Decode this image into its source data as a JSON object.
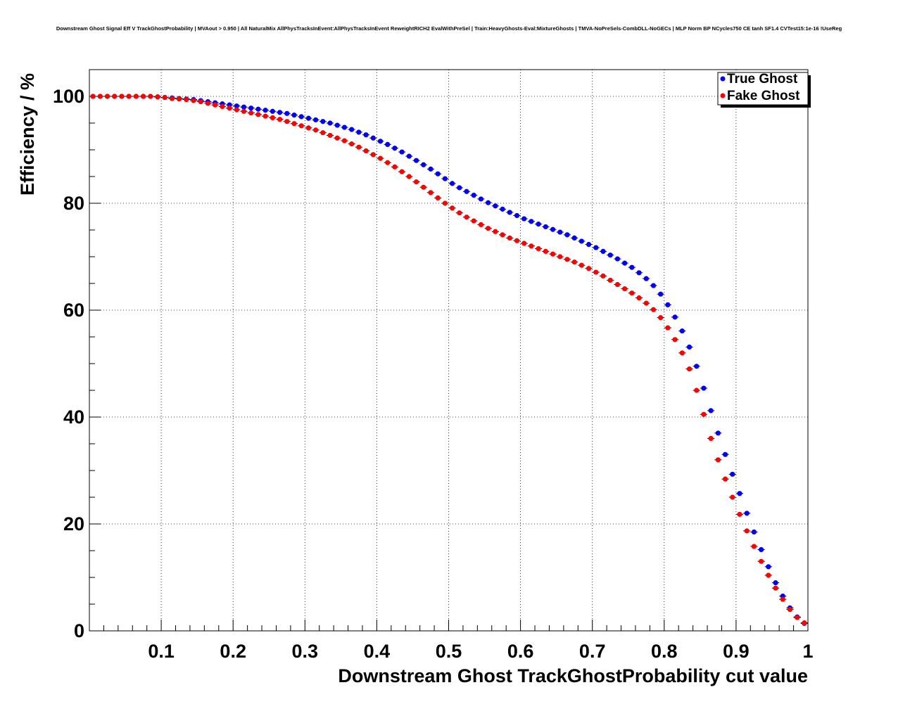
{
  "chart_data": {
    "type": "scatter",
    "title": "Downstream Ghost Signal Eff V TrackGhostProbability | MVAout > 0.950 | All NaturalMix AllPhysTracksInEvent:AllPhysTracksInEvent ReweightRICH2 EvalWithPreSel | Train:HeavyGhosts-Eval:MixtureGhosts | TMVA-NoPreSels-CombDLL-NoGECs | MLP Norm BP NCycles750 CE tanh SF1.4 CVTest15:1e-16 !UseReg",
    "xlabel": "Downstream Ghost TrackGhostProbability cut value",
    "ylabel": "Efficiency / %",
    "xlim": [
      0,
      1
    ],
    "ylim": [
      0,
      105
    ],
    "x_ticks": [
      0.1,
      0.2,
      0.3,
      0.4,
      0.5,
      0.6,
      0.7,
      0.8,
      0.9,
      1
    ],
    "x_tick_labels": [
      "0.1",
      "0.2",
      "0.3",
      "0.4",
      "0.5",
      "0.6",
      "0.7",
      "0.8",
      "0.9",
      "1"
    ],
    "y_ticks": [
      0,
      20,
      40,
      60,
      80,
      100
    ],
    "y_tick_labels": [
      "0",
      "20",
      "40",
      "60",
      "80",
      "100"
    ],
    "grid": true,
    "legend_position": "top-right",
    "x": [
      0.005,
      0.015,
      0.025,
      0.035,
      0.045,
      0.055,
      0.065,
      0.075,
      0.085,
      0.095,
      0.105,
      0.115,
      0.125,
      0.135,
      0.145,
      0.155,
      0.165,
      0.175,
      0.185,
      0.195,
      0.205,
      0.215,
      0.225,
      0.235,
      0.245,
      0.255,
      0.265,
      0.275,
      0.285,
      0.295,
      0.305,
      0.315,
      0.325,
      0.335,
      0.345,
      0.355,
      0.365,
      0.375,
      0.385,
      0.395,
      0.405,
      0.415,
      0.425,
      0.435,
      0.445,
      0.455,
      0.465,
      0.475,
      0.485,
      0.495,
      0.505,
      0.515,
      0.525,
      0.535,
      0.545,
      0.555,
      0.565,
      0.575,
      0.585,
      0.595,
      0.605,
      0.615,
      0.625,
      0.635,
      0.645,
      0.655,
      0.665,
      0.675,
      0.685,
      0.695,
      0.705,
      0.715,
      0.725,
      0.735,
      0.745,
      0.755,
      0.765,
      0.775,
      0.785,
      0.795,
      0.805,
      0.815,
      0.825,
      0.835,
      0.845,
      0.855,
      0.865,
      0.875,
      0.885,
      0.895,
      0.905,
      0.915,
      0.925,
      0.935,
      0.945,
      0.955,
      0.965,
      0.975,
      0.985,
      0.995
    ],
    "series": [
      {
        "name": "True Ghost",
        "color": "#0000ff",
        "values": [
          100.0,
          100.0,
          100.0,
          100.0,
          100.0,
          100.0,
          100.0,
          100.0,
          100.0,
          99.9,
          99.8,
          99.7,
          99.6,
          99.5,
          99.4,
          99.2,
          99.0,
          98.8,
          98.6,
          98.4,
          98.2,
          98.0,
          97.8,
          97.6,
          97.4,
          97.2,
          97.0,
          96.8,
          96.5,
          96.2,
          95.9,
          95.6,
          95.3,
          95.0,
          94.6,
          94.2,
          93.8,
          93.3,
          92.8,
          92.2,
          91.6,
          91.0,
          90.3,
          89.6,
          88.8,
          88.0,
          87.2,
          86.4,
          85.5,
          84.6,
          83.7,
          82.9,
          82.2,
          81.5,
          80.8,
          80.1,
          79.5,
          78.9,
          78.3,
          77.7,
          77.1,
          76.6,
          76.1,
          75.6,
          75.1,
          74.6,
          74.1,
          73.5,
          72.9,
          72.3,
          71.7,
          71.0,
          70.3,
          69.6,
          68.8,
          68.0,
          67.0,
          65.9,
          64.6,
          63.0,
          61.0,
          58.7,
          56.1,
          53.1,
          49.5,
          45.4,
          41.2,
          37.0,
          33.0,
          29.3,
          25.7,
          22.0,
          18.5,
          15.2,
          12.0,
          9.0,
          6.5,
          4.3,
          2.6,
          1.4
        ]
      },
      {
        "name": "Fake Ghost",
        "color": "#ff0000",
        "values": [
          100.0,
          100.0,
          100.0,
          100.0,
          100.0,
          100.0,
          100.0,
          100.0,
          100.0,
          99.9,
          99.8,
          99.6,
          99.5,
          99.4,
          99.2,
          99.0,
          98.7,
          98.4,
          98.1,
          97.8,
          97.5,
          97.2,
          96.9,
          96.6,
          96.3,
          96.0,
          95.7,
          95.3,
          94.9,
          94.5,
          94.1,
          93.7,
          93.2,
          92.7,
          92.2,
          91.7,
          91.1,
          90.5,
          89.8,
          89.1,
          88.4,
          87.6,
          86.8,
          85.9,
          85.0,
          84.0,
          83.0,
          82.0,
          81.0,
          80.0,
          79.1,
          78.2,
          77.4,
          76.7,
          76.0,
          75.3,
          74.7,
          74.1,
          73.5,
          73.0,
          72.5,
          72.0,
          71.5,
          71.0,
          70.5,
          70.0,
          69.5,
          69.0,
          68.4,
          67.8,
          67.1,
          66.4,
          65.6,
          64.8,
          64.0,
          63.2,
          62.3,
          61.3,
          60.1,
          58.6,
          56.7,
          54.5,
          52.0,
          49.0,
          45.0,
          40.5,
          36.0,
          32.0,
          28.4,
          25.0,
          21.8,
          18.7,
          15.8,
          13.0,
          10.4,
          8.0,
          5.9,
          4.0,
          2.5,
          1.5
        ]
      }
    ]
  }
}
